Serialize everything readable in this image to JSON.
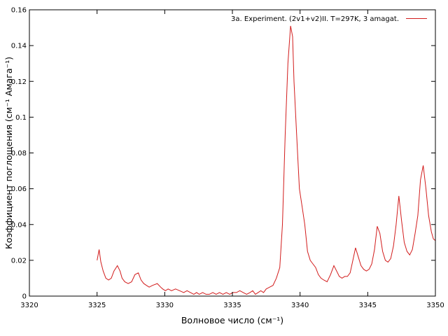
{
  "chart_data": {
    "type": "line",
    "title": "",
    "xlabel": "Волновое число (см⁻¹)",
    "ylabel": "Коэффициент поглощения (см⁻¹ Амага⁻¹)",
    "xlim": [
      3320,
      3350
    ],
    "ylim": [
      0,
      0.16
    ],
    "grid": false,
    "legend_position": "top-right",
    "xticks": [
      "3320",
      "3325",
      "3330",
      "3335",
      "3340",
      "3345",
      "3350"
    ],
    "yticks": [
      "0",
      "0.02",
      "0.04",
      "0.06",
      "0.08",
      "0.1",
      "0.12",
      "0.14",
      "0.16"
    ],
    "series": [
      {
        "name": "3a. Experiment. (2v1+v2)II. T=297K, 3 amagat.",
        "color": "#d21c1c",
        "x": [
          3325.0,
          3325.15,
          3325.28,
          3325.45,
          3325.65,
          3325.85,
          3326.05,
          3326.25,
          3326.5,
          3326.7,
          3326.85,
          3327.05,
          3327.3,
          3327.55,
          3327.8,
          3328.05,
          3328.25,
          3328.45,
          3328.65,
          3328.85,
          3329.1,
          3329.45,
          3329.7,
          3329.85,
          3330.05,
          3330.25,
          3330.5,
          3330.8,
          3331.1,
          3331.4,
          3331.65,
          3331.9,
          3332.15,
          3332.35,
          3332.55,
          3332.8,
          3333.05,
          3333.3,
          3333.55,
          3333.8,
          3334.05,
          3334.3,
          3334.55,
          3334.8,
          3335.05,
          3335.3,
          3335.55,
          3335.8,
          3336.05,
          3336.3,
          3336.5,
          3336.7,
          3336.9,
          3337.1,
          3337.3,
          3337.5,
          3337.75,
          3338.0,
          3338.25,
          3338.5,
          3338.7,
          3338.9,
          3339.1,
          3339.3,
          3339.45,
          3339.55,
          3339.75,
          3339.95,
          3340.15,
          3340.35,
          3340.55,
          3340.75,
          3340.95,
          3341.15,
          3341.35,
          3341.55,
          3341.75,
          3342.0,
          3342.25,
          3342.5,
          3342.7,
          3342.9,
          3343.1,
          3343.3,
          3343.5,
          3343.7,
          3343.9,
          3344.1,
          3344.3,
          3344.5,
          3344.7,
          3344.9,
          3345.1,
          3345.3,
          3345.5,
          3345.7,
          3345.9,
          3346.1,
          3346.3,
          3346.5,
          3346.7,
          3346.9,
          3347.1,
          3347.3,
          3347.5,
          3347.7,
          3347.9,
          3348.1,
          3348.3,
          3348.5,
          3348.7,
          3348.9,
          3349.1,
          3349.3,
          3349.5,
          3349.7,
          3349.85,
          3350.0
        ],
        "y": [
          0.02,
          0.026,
          0.019,
          0.014,
          0.01,
          0.009,
          0.01,
          0.014,
          0.017,
          0.014,
          0.01,
          0.008,
          0.007,
          0.008,
          0.012,
          0.013,
          0.009,
          0.007,
          0.006,
          0.005,
          0.006,
          0.007,
          0.005,
          0.004,
          0.003,
          0.004,
          0.003,
          0.004,
          0.003,
          0.002,
          0.003,
          0.002,
          0.001,
          0.002,
          0.001,
          0.002,
          0.001,
          0.001,
          0.002,
          0.001,
          0.002,
          0.001,
          0.002,
          0.001,
          0.002,
          0.002,
          0.003,
          0.002,
          0.001,
          0.002,
          0.003,
          0.001,
          0.002,
          0.003,
          0.002,
          0.004,
          0.005,
          0.006,
          0.01,
          0.016,
          0.04,
          0.09,
          0.13,
          0.151,
          0.145,
          0.12,
          0.09,
          0.06,
          0.05,
          0.04,
          0.025,
          0.02,
          0.018,
          0.016,
          0.012,
          0.01,
          0.009,
          0.008,
          0.012,
          0.017,
          0.014,
          0.011,
          0.01,
          0.011,
          0.011,
          0.013,
          0.02,
          0.027,
          0.022,
          0.017,
          0.015,
          0.014,
          0.015,
          0.018,
          0.026,
          0.039,
          0.035,
          0.025,
          0.02,
          0.019,
          0.021,
          0.028,
          0.04,
          0.056,
          0.042,
          0.03,
          0.025,
          0.023,
          0.026,
          0.035,
          0.045,
          0.065,
          0.073,
          0.06,
          0.045,
          0.036,
          0.032,
          0.031
        ]
      }
    ]
  }
}
